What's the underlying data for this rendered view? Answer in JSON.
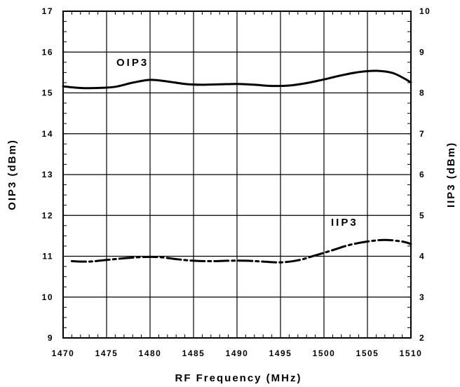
{
  "chart_data": {
    "type": "line",
    "xlabel": "RF Frequency (MHz)",
    "ylabel_left": "OIP3 (dBm)",
    "ylabel_right": "IIP3 (dBm)",
    "xlim": [
      1470,
      1510
    ],
    "ylim_left": [
      9,
      17
    ],
    "ylim_right": [
      2,
      10
    ],
    "x_ticks": [
      "1470",
      "1475",
      "1480",
      "1485",
      "1490",
      "1495",
      "1500",
      "1505",
      "1510"
    ],
    "y_ticks_left": [
      "9",
      "10",
      "11",
      "12",
      "13",
      "14",
      "15",
      "16",
      "17"
    ],
    "y_ticks_right": [
      "2",
      "3",
      "4",
      "5",
      "6",
      "7",
      "8",
      "9",
      "10"
    ],
    "grid": true,
    "series": [
      {
        "name": "OIP3",
        "axis": "left",
        "style": "solid",
        "x": [
          1470,
          1472,
          1474,
          1476,
          1478,
          1480,
          1482,
          1484,
          1486,
          1488,
          1490,
          1492,
          1494,
          1496,
          1498,
          1500,
          1502,
          1504,
          1506,
          1508,
          1510
        ],
        "values": [
          15.16,
          15.12,
          15.12,
          15.15,
          15.25,
          15.32,
          15.28,
          15.22,
          15.2,
          15.21,
          15.22,
          15.2,
          15.17,
          15.18,
          15.24,
          15.33,
          15.43,
          15.51,
          15.54,
          15.48,
          15.26
        ]
      },
      {
        "name": "IIP3",
        "axis": "left",
        "style": "dashed",
        "x": [
          1471,
          1473,
          1475,
          1477,
          1479,
          1481,
          1483,
          1485,
          1487,
          1489,
          1491,
          1493,
          1495,
          1497,
          1499,
          1501,
          1503,
          1505,
          1507,
          1509,
          1510
        ],
        "values": [
          10.88,
          10.87,
          10.91,
          10.95,
          10.98,
          10.98,
          10.93,
          10.89,
          10.88,
          10.89,
          10.89,
          10.87,
          10.85,
          10.9,
          11.02,
          11.15,
          11.28,
          11.36,
          11.4,
          11.36,
          11.3
        ]
      }
    ]
  }
}
